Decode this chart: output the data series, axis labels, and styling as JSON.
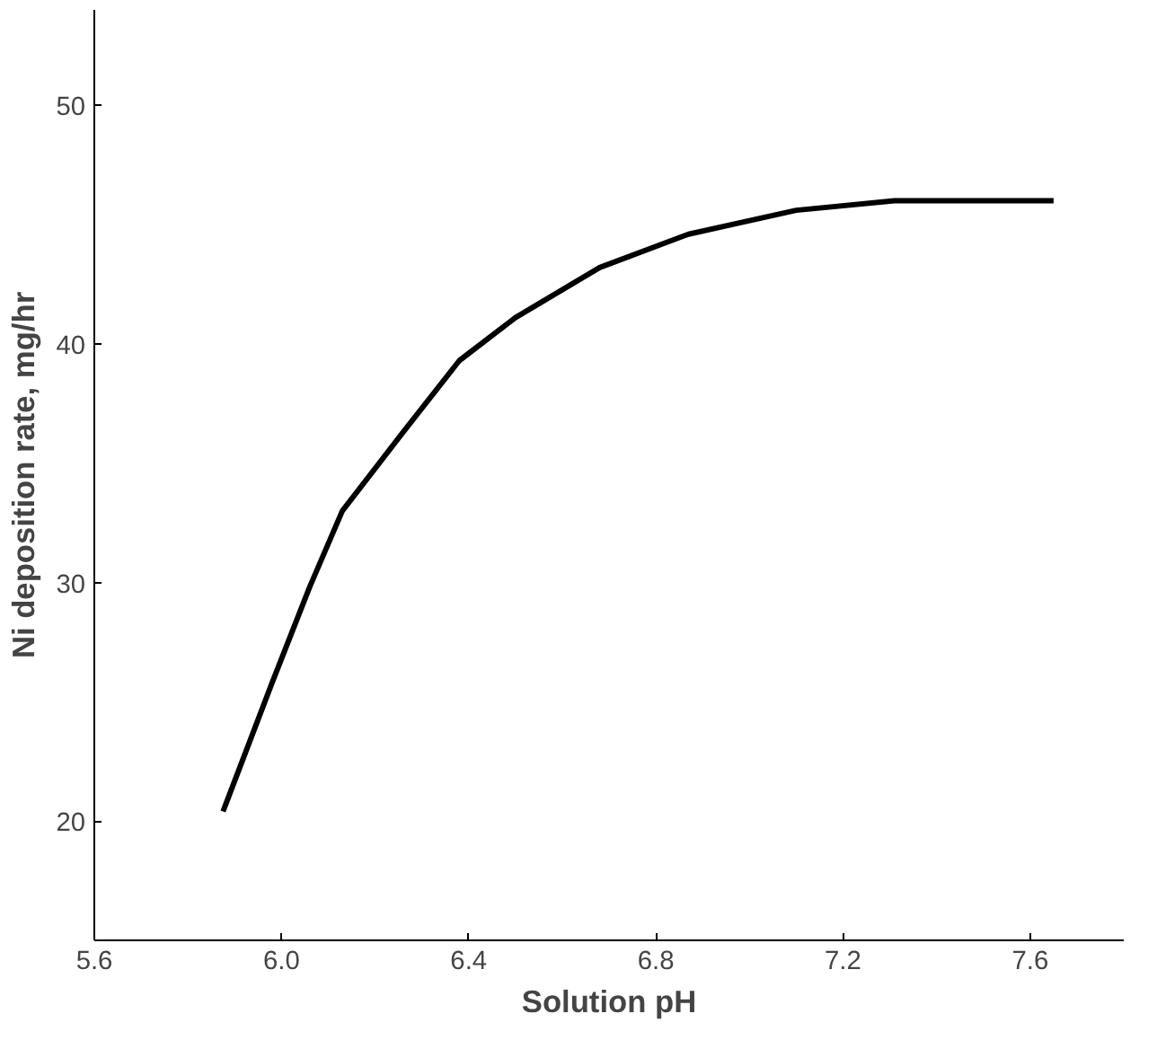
{
  "chart_data": {
    "type": "line",
    "xlabel": "Solution pH",
    "ylabel": "Ni deposition rate, mg/hr",
    "x": [
      5.875,
      5.98,
      6.06,
      6.13,
      6.26,
      6.38,
      6.5,
      6.68,
      6.87,
      7.1,
      7.31,
      7.65
    ],
    "series": [
      {
        "color": "#000000",
        "values": [
          20.4,
          25.8,
          29.8,
          33.0,
          36.3,
          39.3,
          41.1,
          43.2,
          44.6,
          45.6,
          46.0,
          46.0
        ]
      }
    ],
    "xlim": [
      5.6,
      7.8
    ],
    "ylim": [
      15,
      54
    ],
    "xticks": [
      {
        "value": 5.6,
        "label": "5.6"
      },
      {
        "value": 6.0,
        "label": "6.0"
      },
      {
        "value": 6.4,
        "label": "6.4"
      },
      {
        "value": 6.8,
        "label": "6.8"
      },
      {
        "value": 7.2,
        "label": "7.2"
      },
      {
        "value": 7.6,
        "label": "7.6"
      }
    ],
    "yticks": [
      20,
      30,
      40,
      50
    ],
    "grid": false,
    "marker": "none",
    "line_style": "solid"
  }
}
